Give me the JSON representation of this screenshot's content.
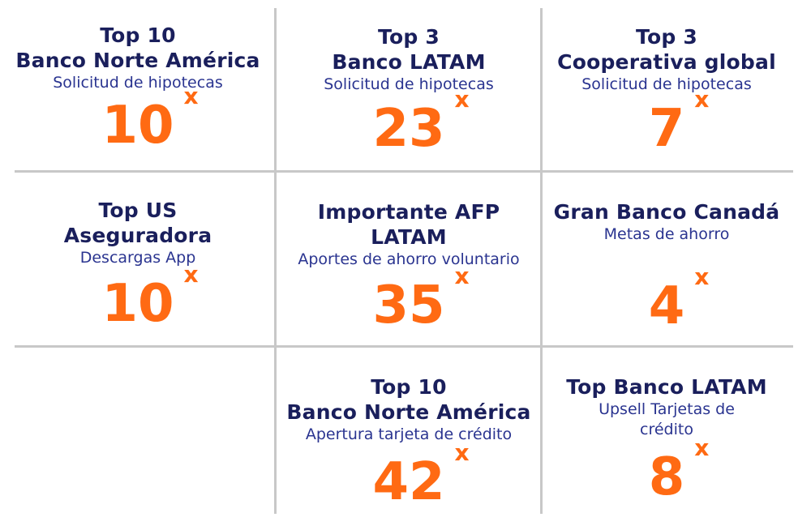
{
  "cells": [
    {
      "title": "Top 10",
      "title2": "Banco Norte América",
      "sub": "Solicitud de hipotecas",
      "value": "10",
      "suffix": "x"
    },
    {
      "title": "Top 3",
      "title2": "Banco LATAM",
      "sub": "Solicitud de hipotecas",
      "value": "23",
      "suffix": "x"
    },
    {
      "title": "Top 3",
      "title2": "Cooperativa global",
      "sub": "Solicitud de hipotecas",
      "value": "7",
      "suffix": "x"
    },
    {
      "title": "Top US",
      "title2": "Aseguradora",
      "sub": "Descargas App",
      "value": "10",
      "suffix": "x"
    },
    {
      "title": "Importante AFP",
      "title2": "LATAM",
      "sub": "Aportes de ahorro voluntario",
      "value": "35",
      "suffix": "x"
    },
    {
      "title": "Gran Banco Canadá",
      "sub": "Metas de ahorro",
      "value": "4",
      "suffix": "x"
    },
    {
      "title": "Top 10",
      "title2": "Banco Norte América",
      "sub": "Apertura tarjeta de crédito",
      "value": "42",
      "suffix": "x"
    },
    {
      "title": "Top Banco LATAM",
      "sub": "Upsell Tarjetas de",
      "sub2": "crédito",
      "value": "8",
      "suffix": "x"
    }
  ],
  "colors": {
    "title": "#1a1f5c",
    "subtitle": "#2a3490",
    "number": "#ff6a13",
    "grid": "#c8c8c8"
  }
}
